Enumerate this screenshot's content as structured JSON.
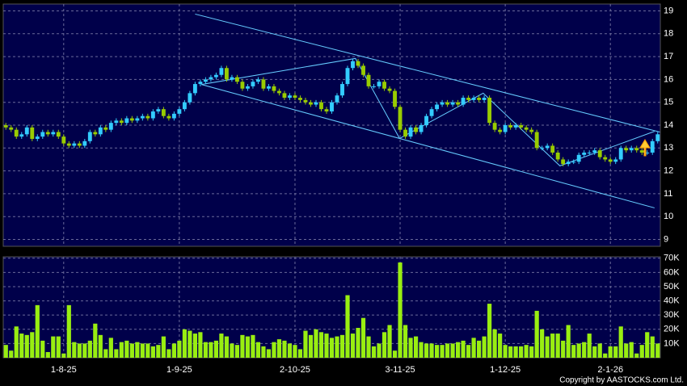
{
  "chart_data": [
    {
      "type": "candlestick",
      "open": [
        14.0,
        13.9,
        13.8,
        13.5,
        13.6,
        13.9,
        13.4,
        13.5,
        13.7,
        13.6,
        13.7,
        13.5,
        13.2,
        13.1,
        13.2,
        13.1,
        13.3,
        13.7,
        13.6,
        13.9,
        13.8,
        14.1,
        14.2,
        14.1,
        14.3,
        14.2,
        14.3,
        14.4,
        14.3,
        14.6,
        14.7,
        14.4,
        14.3,
        14.5,
        14.7,
        15.0,
        15.4,
        15.8,
        15.9,
        16.0,
        16.1,
        16.2,
        16.5,
        16.0,
        16.1,
        15.9,
        15.6,
        15.7,
        15.9,
        16.0,
        15.6,
        15.7,
        15.5,
        15.4,
        15.2,
        15.3,
        15.2,
        15.1,
        15.0,
        14.9,
        15.0,
        14.7,
        14.6,
        15.0,
        15.3,
        15.8,
        16.5,
        16.8,
        16.6,
        16.2,
        15.7,
        15.7,
        15.9,
        15.6,
        15.5,
        14.8,
        13.8,
        13.5,
        13.9,
        13.7,
        14.0,
        14.4,
        14.7,
        14.9,
        15.0,
        14.9,
        15.0,
        14.9,
        15.2,
        15.1,
        15.2,
        15.1,
        15.2,
        14.1,
        13.8,
        13.7,
        14.0,
        13.9,
        14.0,
        13.9,
        13.8,
        13.7,
        13.0,
        13.0,
        13.1,
        12.8,
        12.5,
        12.3,
        12.4,
        12.4,
        12.7,
        12.8,
        12.8,
        12.9,
        12.6,
        12.5,
        12.4,
        12.5,
        13.0,
        12.9,
        13.0,
        12.9,
        12.8,
        12.8,
        13.3
      ],
      "high": [
        14.1,
        14.0,
        13.9,
        13.7,
        14.0,
        14.0,
        13.6,
        13.8,
        13.8,
        13.8,
        13.8,
        13.6,
        13.3,
        13.3,
        13.3,
        13.4,
        13.8,
        13.8,
        14.0,
        14.0,
        14.2,
        14.3,
        14.3,
        14.4,
        14.4,
        14.4,
        14.5,
        14.5,
        14.7,
        14.8,
        14.8,
        14.5,
        14.6,
        14.8,
        15.1,
        15.5,
        15.9,
        16.0,
        16.1,
        16.2,
        16.3,
        16.6,
        16.6,
        16.2,
        16.2,
        16.0,
        15.8,
        16.0,
        16.1,
        16.1,
        15.8,
        15.8,
        15.6,
        15.5,
        15.4,
        15.4,
        15.3,
        15.2,
        15.1,
        15.1,
        15.1,
        14.8,
        15.1,
        15.4,
        15.9,
        16.6,
        16.9,
        16.9,
        16.7,
        16.3,
        15.8,
        16.0,
        16.0,
        15.7,
        15.6,
        14.9,
        13.9,
        14.0,
        14.0,
        14.1,
        14.5,
        14.8,
        15.0,
        15.1,
        15.1,
        15.1,
        15.1,
        15.3,
        15.3,
        15.3,
        15.3,
        15.3,
        15.3,
        14.2,
        13.9,
        14.1,
        14.1,
        14.1,
        14.1,
        14.0,
        13.9,
        13.8,
        13.1,
        13.2,
        13.2,
        12.9,
        12.6,
        12.5,
        12.5,
        12.8,
        12.9,
        12.9,
        13.0,
        13.0,
        12.7,
        12.6,
        12.6,
        13.1,
        13.1,
        13.1,
        13.1,
        13.0,
        12.9,
        13.4,
        13.7
      ],
      "low": [
        13.8,
        13.7,
        13.4,
        13.4,
        13.5,
        13.3,
        13.3,
        13.4,
        13.5,
        13.5,
        13.4,
        13.1,
        13.0,
        13.0,
        13.0,
        13.0,
        13.2,
        13.5,
        13.5,
        13.7,
        13.7,
        14.0,
        14.0,
        14.0,
        14.1,
        14.1,
        14.2,
        14.2,
        14.2,
        14.5,
        14.3,
        14.2,
        14.2,
        14.4,
        14.6,
        14.9,
        15.3,
        15.7,
        15.8,
        15.9,
        16.0,
        16.1,
        15.9,
        15.9,
        15.8,
        15.5,
        15.5,
        15.6,
        15.8,
        15.5,
        15.5,
        15.4,
        15.3,
        15.1,
        15.1,
        15.1,
        15.0,
        14.9,
        14.8,
        14.8,
        14.6,
        14.5,
        14.5,
        14.9,
        15.2,
        15.7,
        16.4,
        16.5,
        16.1,
        15.6,
        15.6,
        15.6,
        15.5,
        15.4,
        14.7,
        13.7,
        13.4,
        13.4,
        13.6,
        13.6,
        13.9,
        14.3,
        14.6,
        14.8,
        14.8,
        14.8,
        14.8,
        14.8,
        15.0,
        15.0,
        15.0,
        15.0,
        14.0,
        13.7,
        13.6,
        13.6,
        13.8,
        13.8,
        13.8,
        13.7,
        13.6,
        12.9,
        12.9,
        12.9,
        12.7,
        12.4,
        12.2,
        12.2,
        12.3,
        12.3,
        12.6,
        12.7,
        12.7,
        12.5,
        12.4,
        12.3,
        12.3,
        12.4,
        12.8,
        12.8,
        12.8,
        12.7,
        12.7,
        12.7,
        13.2
      ],
      "close": [
        13.9,
        13.8,
        13.5,
        13.6,
        13.9,
        13.4,
        13.5,
        13.7,
        13.6,
        13.7,
        13.5,
        13.2,
        13.1,
        13.2,
        13.1,
        13.3,
        13.7,
        13.6,
        13.9,
        13.8,
        14.1,
        14.2,
        14.1,
        14.3,
        14.2,
        14.3,
        14.4,
        14.3,
        14.6,
        14.7,
        14.4,
        14.3,
        14.5,
        14.7,
        15.0,
        15.4,
        15.8,
        15.9,
        16.0,
        16.1,
        16.2,
        16.5,
        16.0,
        16.1,
        15.9,
        15.6,
        15.7,
        15.9,
        16.0,
        15.6,
        15.7,
        15.5,
        15.4,
        15.2,
        15.3,
        15.2,
        15.1,
        15.0,
        14.9,
        15.0,
        14.7,
        14.6,
        15.0,
        15.3,
        15.8,
        16.5,
        16.8,
        16.6,
        16.2,
        15.7,
        15.7,
        15.9,
        15.6,
        15.5,
        14.8,
        13.8,
        13.5,
        13.9,
        13.7,
        14.0,
        14.4,
        14.7,
        14.9,
        15.0,
        14.9,
        15.0,
        14.9,
        15.2,
        15.1,
        15.2,
        15.1,
        15.2,
        14.1,
        13.8,
        13.7,
        14.0,
        13.9,
        14.0,
        13.9,
        13.8,
        13.7,
        13.0,
        13.0,
        13.1,
        12.8,
        12.5,
        12.3,
        12.4,
        12.4,
        12.7,
        12.8,
        12.8,
        12.9,
        12.6,
        12.5,
        12.4,
        12.5,
        13.0,
        12.9,
        13.0,
        12.9,
        12.8,
        12.8,
        13.3,
        13.6
      ],
      "up_color": "#33ccff",
      "down_color": "#99cc00",
      "lines": [
        [
          [
            36,
            18.86
          ],
          [
            124.4,
            13.7
          ]
        ],
        [
          [
            37.2,
            15.78
          ],
          [
            123.4,
            10.38
          ]
        ],
        [
          [
            37.2,
            15.78
          ],
          [
            66.5,
            16.92
          ],
          [
            74.9,
            13.42
          ],
          [
            90.8,
            15.4
          ],
          [
            105.4,
            12.22
          ],
          [
            123.4,
            13.73
          ]
        ]
      ],
      "line_color": "#66ccff",
      "ylim": [
        8.7,
        19.3
      ],
      "yticks": [
        9,
        10,
        11,
        12,
        13,
        14,
        15,
        16,
        17,
        18,
        19
      ],
      "grid": true
    },
    {
      "type": "bar",
      "categories": [
        null,
        null,
        null,
        null,
        null,
        null,
        null,
        null,
        null,
        null,
        null,
        "1-8-25",
        null,
        null,
        null,
        null,
        null,
        null,
        null,
        null,
        null,
        null,
        null,
        null,
        null,
        null,
        null,
        null,
        null,
        null,
        null,
        null,
        null,
        "1-9-25",
        null,
        null,
        null,
        null,
        null,
        null,
        null,
        null,
        null,
        null,
        null,
        null,
        null,
        null,
        null,
        null,
        null,
        null,
        null,
        null,
        null,
        "2-10-25",
        null,
        null,
        null,
        null,
        null,
        null,
        null,
        null,
        null,
        null,
        null,
        null,
        null,
        null,
        null,
        null,
        null,
        null,
        null,
        "3-11-25",
        null,
        null,
        null,
        null,
        null,
        null,
        null,
        null,
        null,
        null,
        null,
        null,
        null,
        null,
        null,
        null,
        null,
        null,
        null,
        "1-12-25",
        null,
        null,
        null,
        null,
        null,
        null,
        null,
        null,
        null,
        null,
        null,
        null,
        null,
        null,
        null,
        null,
        null,
        null,
        null,
        "2-1-26",
        null,
        null,
        null,
        null,
        null,
        null,
        null,
        null,
        null
      ],
      "values": [
        9000,
        5000,
        22000,
        17000,
        16000,
        18000,
        37000,
        12000,
        4000,
        15000,
        15000,
        3000,
        37000,
        11000,
        10000,
        10000,
        12000,
        24000,
        16000,
        6000,
        14000,
        6000,
        11000,
        12000,
        10000,
        11000,
        10000,
        10000,
        8000,
        9000,
        15000,
        6000,
        10000,
        12000,
        20000,
        19000,
        17000,
        18000,
        11000,
        11000,
        12000,
        17000,
        15000,
        10000,
        9000,
        16000,
        15000,
        16000,
        11000,
        8000,
        6000,
        11000,
        13000,
        12000,
        10000,
        9000,
        6000,
        19000,
        16000,
        20000,
        18000,
        17000,
        14000,
        15000,
        16000,
        44000,
        17000,
        21000,
        28000,
        15000,
        8000,
        10000,
        18000,
        23000,
        5000,
        67000,
        23000,
        14000,
        15000,
        11000,
        10000,
        10000,
        9000,
        9000,
        10000,
        10000,
        11000,
        12000,
        9000,
        14000,
        12000,
        15000,
        38000,
        20000,
        17000,
        9000,
        8000,
        8000,
        8000,
        9000,
        8000,
        33000,
        20000,
        15000,
        17000,
        17000,
        12000,
        23000,
        9000,
        10000,
        11000,
        17000,
        8000,
        10000,
        3000,
        8000,
        8000,
        22000,
        10000,
        11000,
        3000,
        9000,
        18000,
        15000,
        10000
      ],
      "color": "#99ee11",
      "ylim": [
        0,
        71000
      ],
      "yticks": [
        {
          "value": 10000,
          "label": "10K"
        },
        {
          "value": 20000,
          "label": "20K"
        },
        {
          "value": 30000,
          "label": "30K"
        },
        {
          "value": 40000,
          "label": "40K"
        },
        {
          "value": 50000,
          "label": "50K"
        },
        {
          "value": 60000,
          "label": "60K"
        },
        {
          "value": 70000,
          "label": "70K"
        }
      ],
      "grid": true
    }
  ],
  "copyright": "Copyright by AASTOCKS.com Ltd."
}
